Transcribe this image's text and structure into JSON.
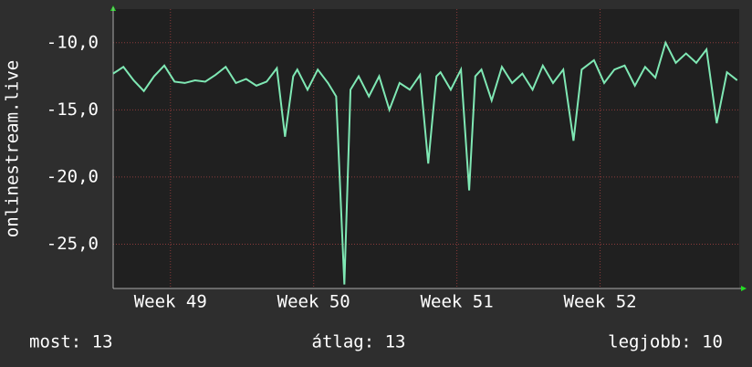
{
  "chart_data": {
    "type": "line",
    "ylabel": "onlinestream.live",
    "x": [
      0,
      0.5,
      1,
      1.5,
      2,
      2.5,
      3,
      3.5,
      4,
      4.5,
      5,
      5.5,
      6,
      6.5,
      7,
      7.5,
      8,
      8.4,
      8.8,
      9,
      9.5,
      10,
      10.5,
      10.9,
      11.3,
      11.6,
      12,
      12.5,
      13,
      13.5,
      14,
      14.5,
      15,
      15.4,
      15.8,
      16,
      16.5,
      17,
      17.4,
      17.7,
      18,
      18.5,
      19,
      19.5,
      20,
      20.5,
      21,
      21.5,
      22,
      22.5,
      22.9,
      23.5,
      24,
      24.5,
      25,
      25.5,
      26,
      26.5,
      27,
      27.5,
      28,
      28.5,
      29,
      29.5,
      30,
      30.5
    ],
    "series": [
      {
        "name": "onlinestream.live",
        "color": "#7fe8b4",
        "values": [
          -12.3,
          -11.8,
          -12.8,
          -13.6,
          -12.5,
          -11.7,
          -12.9,
          -13.0,
          -12.8,
          -12.9,
          -12.4,
          -11.8,
          -13.0,
          -12.7,
          -13.2,
          -12.9,
          -11.9,
          -17.0,
          -12.5,
          -12.0,
          -13.5,
          -12.0,
          -13.0,
          -14.0,
          -28.0,
          -13.5,
          -12.5,
          -14.0,
          -12.5,
          -15.0,
          -13.0,
          -13.5,
          -12.4,
          -19.0,
          -12.5,
          -12.2,
          -13.5,
          -12.0,
          -21.0,
          -12.5,
          -12.0,
          -14.3,
          -11.8,
          -13.0,
          -12.3,
          -13.5,
          -11.7,
          -13.0,
          -12.0,
          -17.3,
          -12.0,
          -11.3,
          -13.0,
          -12.0,
          -11.7,
          -13.2,
          -11.8,
          -12.6,
          -10.0,
          -11.5,
          -10.8,
          -11.5,
          -10.5,
          -16.0,
          -12.2,
          -12.8
        ]
      }
    ],
    "xlim": [
      0,
      30.6
    ],
    "xticks": [
      {
        "value": 2.8,
        "label": "Week 49"
      },
      {
        "value": 9.8,
        "label": "Week 50"
      },
      {
        "value": 16.8,
        "label": "Week 51"
      },
      {
        "value": 23.8,
        "label": "Week 52"
      }
    ],
    "ylim": [
      -28.3,
      -7.5
    ],
    "yticks": [
      {
        "value": -25,
        "label": "-25,0"
      },
      {
        "value": -20,
        "label": "-20,0"
      },
      {
        "value": -15,
        "label": "-15,0"
      },
      {
        "value": -10,
        "label": "-10,0"
      }
    ],
    "grid": true,
    "footer": [
      "most: 13",
      "átlag: 13",
      "legjobb: 10"
    ]
  }
}
